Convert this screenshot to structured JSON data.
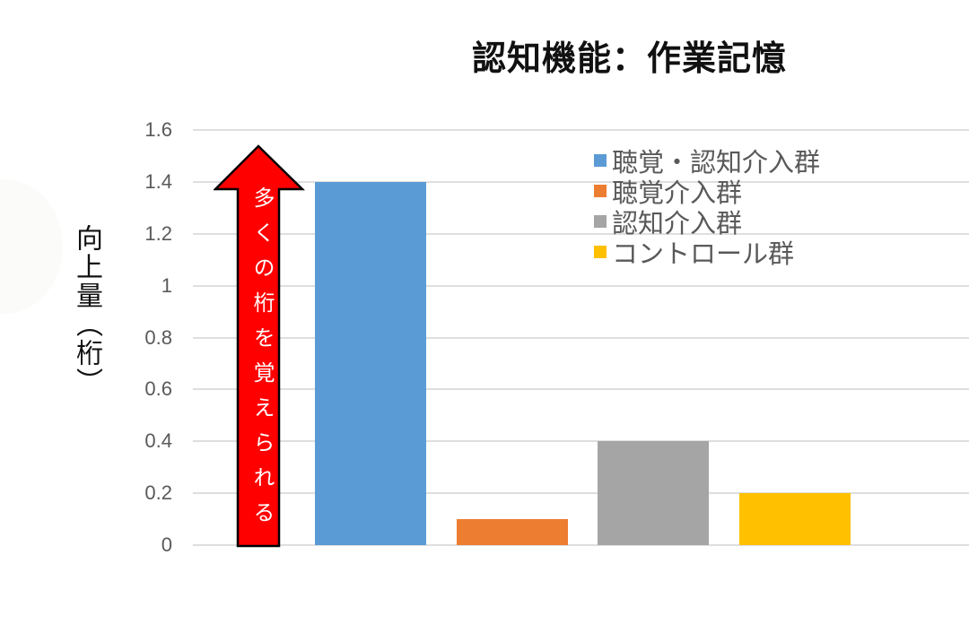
{
  "chart_data": {
    "type": "bar",
    "title": "認知機能：作業記憶",
    "xlabel": "",
    "ylabel": "向上量（桁）",
    "ylim": [
      0,
      1.6
    ],
    "yticks": [
      "1.6",
      "1.4",
      "1.2",
      "1",
      "0.8",
      "0.6",
      "0.4",
      "0.2",
      "0"
    ],
    "grid": true,
    "legend_position": "upper right",
    "categories": [
      "聴覚・認知介入群",
      "聴覚介入群",
      "認知介入群",
      "コントロール群"
    ],
    "values": [
      1.4,
      0.1,
      0.4,
      0.2
    ],
    "colors": [
      "#5B9BD5",
      "#ED7D31",
      "#A5A5A5",
      "#FFC000"
    ],
    "annotations": [
      {
        "type": "arrow-up",
        "text": "多くの桁を覚えられる",
        "color": "#FF0000"
      }
    ]
  },
  "legend": [
    {
      "label": "聴覚・認知介入群",
      "color": "#5B9BD5"
    },
    {
      "label": "聴覚介入群",
      "color": "#ED7D31"
    },
    {
      "label": "認知介入群",
      "color": "#A5A5A5"
    },
    {
      "label": "コントロール群",
      "color": "#FFC000"
    }
  ]
}
